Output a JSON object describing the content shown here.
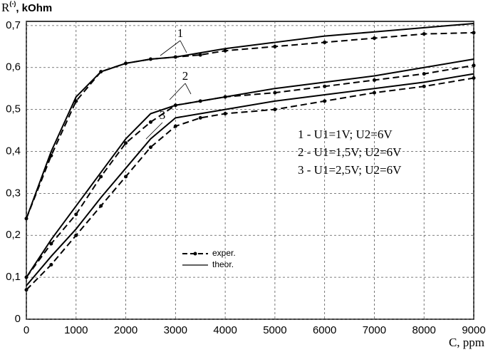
{
  "chart_data": {
    "type": "line",
    "ylabel": {
      "base": "R",
      "sup": "(-)",
      "rest": ", kOhm"
    },
    "xlabel": "C, ppm",
    "x": [
      0,
      500,
      1000,
      1500,
      2000,
      2500,
      3000,
      3500,
      4000,
      5000,
      6000,
      7000,
      8000,
      9000
    ],
    "xlim": [
      0,
      9000
    ],
    "xticks": [
      0,
      1000,
      2000,
      3000,
      4000,
      5000,
      6000,
      7000,
      8000,
      9000
    ],
    "ylim": [
      0,
      0.71
    ],
    "yticks": [
      0,
      {
        "value": 0.1,
        "label": "0,1"
      },
      {
        "value": 0.2,
        "label": "0,2"
      },
      {
        "value": 0.3,
        "label": "0,3"
      },
      {
        "value": 0.4,
        "label": "0,4"
      },
      {
        "value": 0.5,
        "label": "0,5"
      },
      {
        "value": 0.6,
        "label": "0,6"
      },
      {
        "value": 0.7,
        "label": "0,7"
      }
    ],
    "grid": true,
    "legend": [
      {
        "label": "exper.",
        "dashed": true,
        "marker": true
      },
      {
        "label": "theor.",
        "dashed": false,
        "marker": false
      }
    ],
    "notes": [
      "1 - U1=1V; U2=6V",
      "2 - U1=1,5V; U2=6V",
      "3 - U1=2,5V; U2=6V"
    ],
    "series": [
      {
        "name": "1",
        "kind": 1,
        "color": "#000000",
        "values": [
          0.24,
          0.4,
          0.53,
          0.59,
          0.61,
          0.62,
          0.625,
          0.635,
          0.645,
          0.66,
          0.675,
          0.685,
          0.695,
          0.705
        ]
      },
      {
        "name": "1",
        "kind": 0,
        "color": "#000000",
        "values": [
          0.24,
          0.39,
          0.52,
          0.59,
          0.61,
          0.62,
          0.625,
          0.63,
          0.64,
          0.65,
          0.66,
          0.67,
          0.68,
          0.683
        ]
      },
      {
        "name": "2",
        "kind": 1,
        "color": "#000000",
        "values": [
          0.1,
          0.19,
          0.27,
          0.35,
          0.43,
          0.49,
          0.51,
          0.52,
          0.53,
          0.55,
          0.565,
          0.58,
          0.6,
          0.62
        ]
      },
      {
        "name": "2",
        "kind": 0,
        "color": "#000000",
        "values": [
          0.1,
          0.18,
          0.25,
          0.34,
          0.42,
          0.47,
          0.51,
          0.52,
          0.53,
          0.54,
          0.555,
          0.57,
          0.585,
          0.605
        ]
      },
      {
        "name": "3",
        "kind": 1,
        "color": "#000000",
        "values": [
          0.08,
          0.15,
          0.215,
          0.29,
          0.36,
          0.43,
          0.48,
          0.49,
          0.5,
          0.52,
          0.535,
          0.55,
          0.565,
          0.585
        ]
      },
      {
        "name": "3",
        "kind": 0,
        "color": "#000000",
        "values": [
          0.07,
          0.13,
          0.2,
          0.27,
          0.34,
          0.41,
          0.46,
          0.48,
          0.49,
          0.5,
          0.52,
          0.54,
          0.555,
          0.575
        ]
      }
    ]
  }
}
